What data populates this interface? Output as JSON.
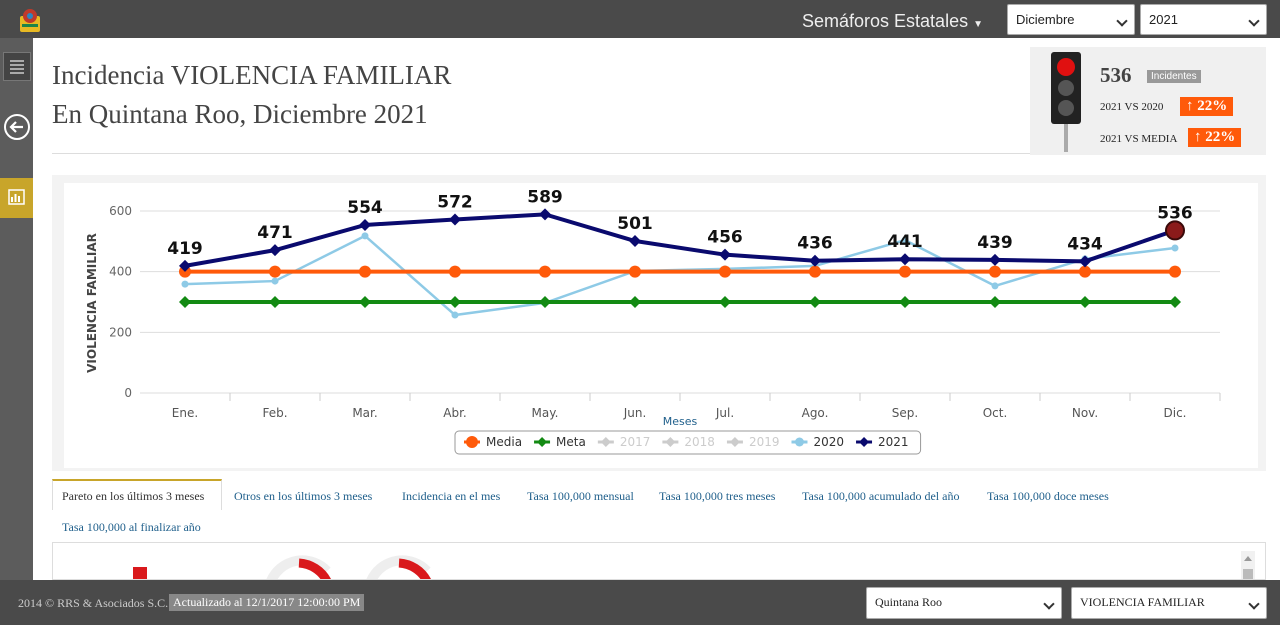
{
  "header": {
    "menu": "Semáforos Estatales",
    "month": "Diciembre",
    "year": "2021"
  },
  "title": {
    "line1": "Incidencia VIOLENCIA FAMILIAR",
    "line2": "En Quintana Roo, Diciembre 2021"
  },
  "indicator": {
    "value": "536",
    "unit": "Incidentes",
    "comparisons": [
      {
        "label": "2021 VS 2020",
        "change": "22%"
      },
      {
        "label": "2021 VS MEDIA",
        "change": "22%"
      }
    ]
  },
  "chart_data": {
    "type": "line",
    "y_label": "VIOLENCIA FAMILIAR",
    "x_label": "Meses",
    "categories": [
      "Ene.",
      "Feb.",
      "Mar.",
      "Abr.",
      "May.",
      "Jun.",
      "Jul.",
      "Ago.",
      "Sep.",
      "Oct.",
      "Nov.",
      "Dic."
    ],
    "ylim": [
      0,
      600
    ],
    "yticks": [
      0,
      200,
      400,
      600
    ],
    "grid": true,
    "series": [
      {
        "name": "Media",
        "color": "#ff5a0a",
        "values": [
          400,
          400,
          400,
          400,
          400,
          400,
          400,
          400,
          400,
          400,
          400,
          400
        ]
      },
      {
        "name": "Meta",
        "color": "#138a13",
        "values": [
          300,
          300,
          300,
          300,
          300,
          300,
          300,
          300,
          300,
          300,
          300,
          300
        ]
      },
      {
        "name": "2017",
        "color": "#cccccc",
        "visible": false
      },
      {
        "name": "2018",
        "color": "#cccccc",
        "visible": false
      },
      {
        "name": "2019",
        "color": "#cccccc",
        "visible": false
      },
      {
        "name": "2020",
        "color": "#8ecae6",
        "values": [
          359,
          369,
          518,
          257,
          297,
          402,
          409,
          419,
          504,
          353,
          442,
          478
        ]
      },
      {
        "name": "2021",
        "color": "#0a0a6e",
        "data_labels": true,
        "values": [
          419,
          471,
          554,
          572,
          589,
          501,
          456,
          436,
          441,
          439,
          434,
          536
        ]
      }
    ]
  },
  "tabs": [
    "Pareto en los últimos 3 meses",
    "Otros en los últimos 3 meses",
    "Incidencia en el mes",
    "Tasa 100,000 mensual",
    "Tasa 100,000 tres meses",
    "Tasa 100,000 acumulado del año",
    "Tasa 100,000 doce meses",
    "Tasa 100,000 al finalizar año"
  ],
  "footer": {
    "copyright": "2014 © RRS & Asociados S.C.",
    "updated": "Actualizado al 12/1/2017 12:00:00 PM",
    "state": "Quintana Roo",
    "indicator": "VIOLENCIA FAMILIAR"
  }
}
